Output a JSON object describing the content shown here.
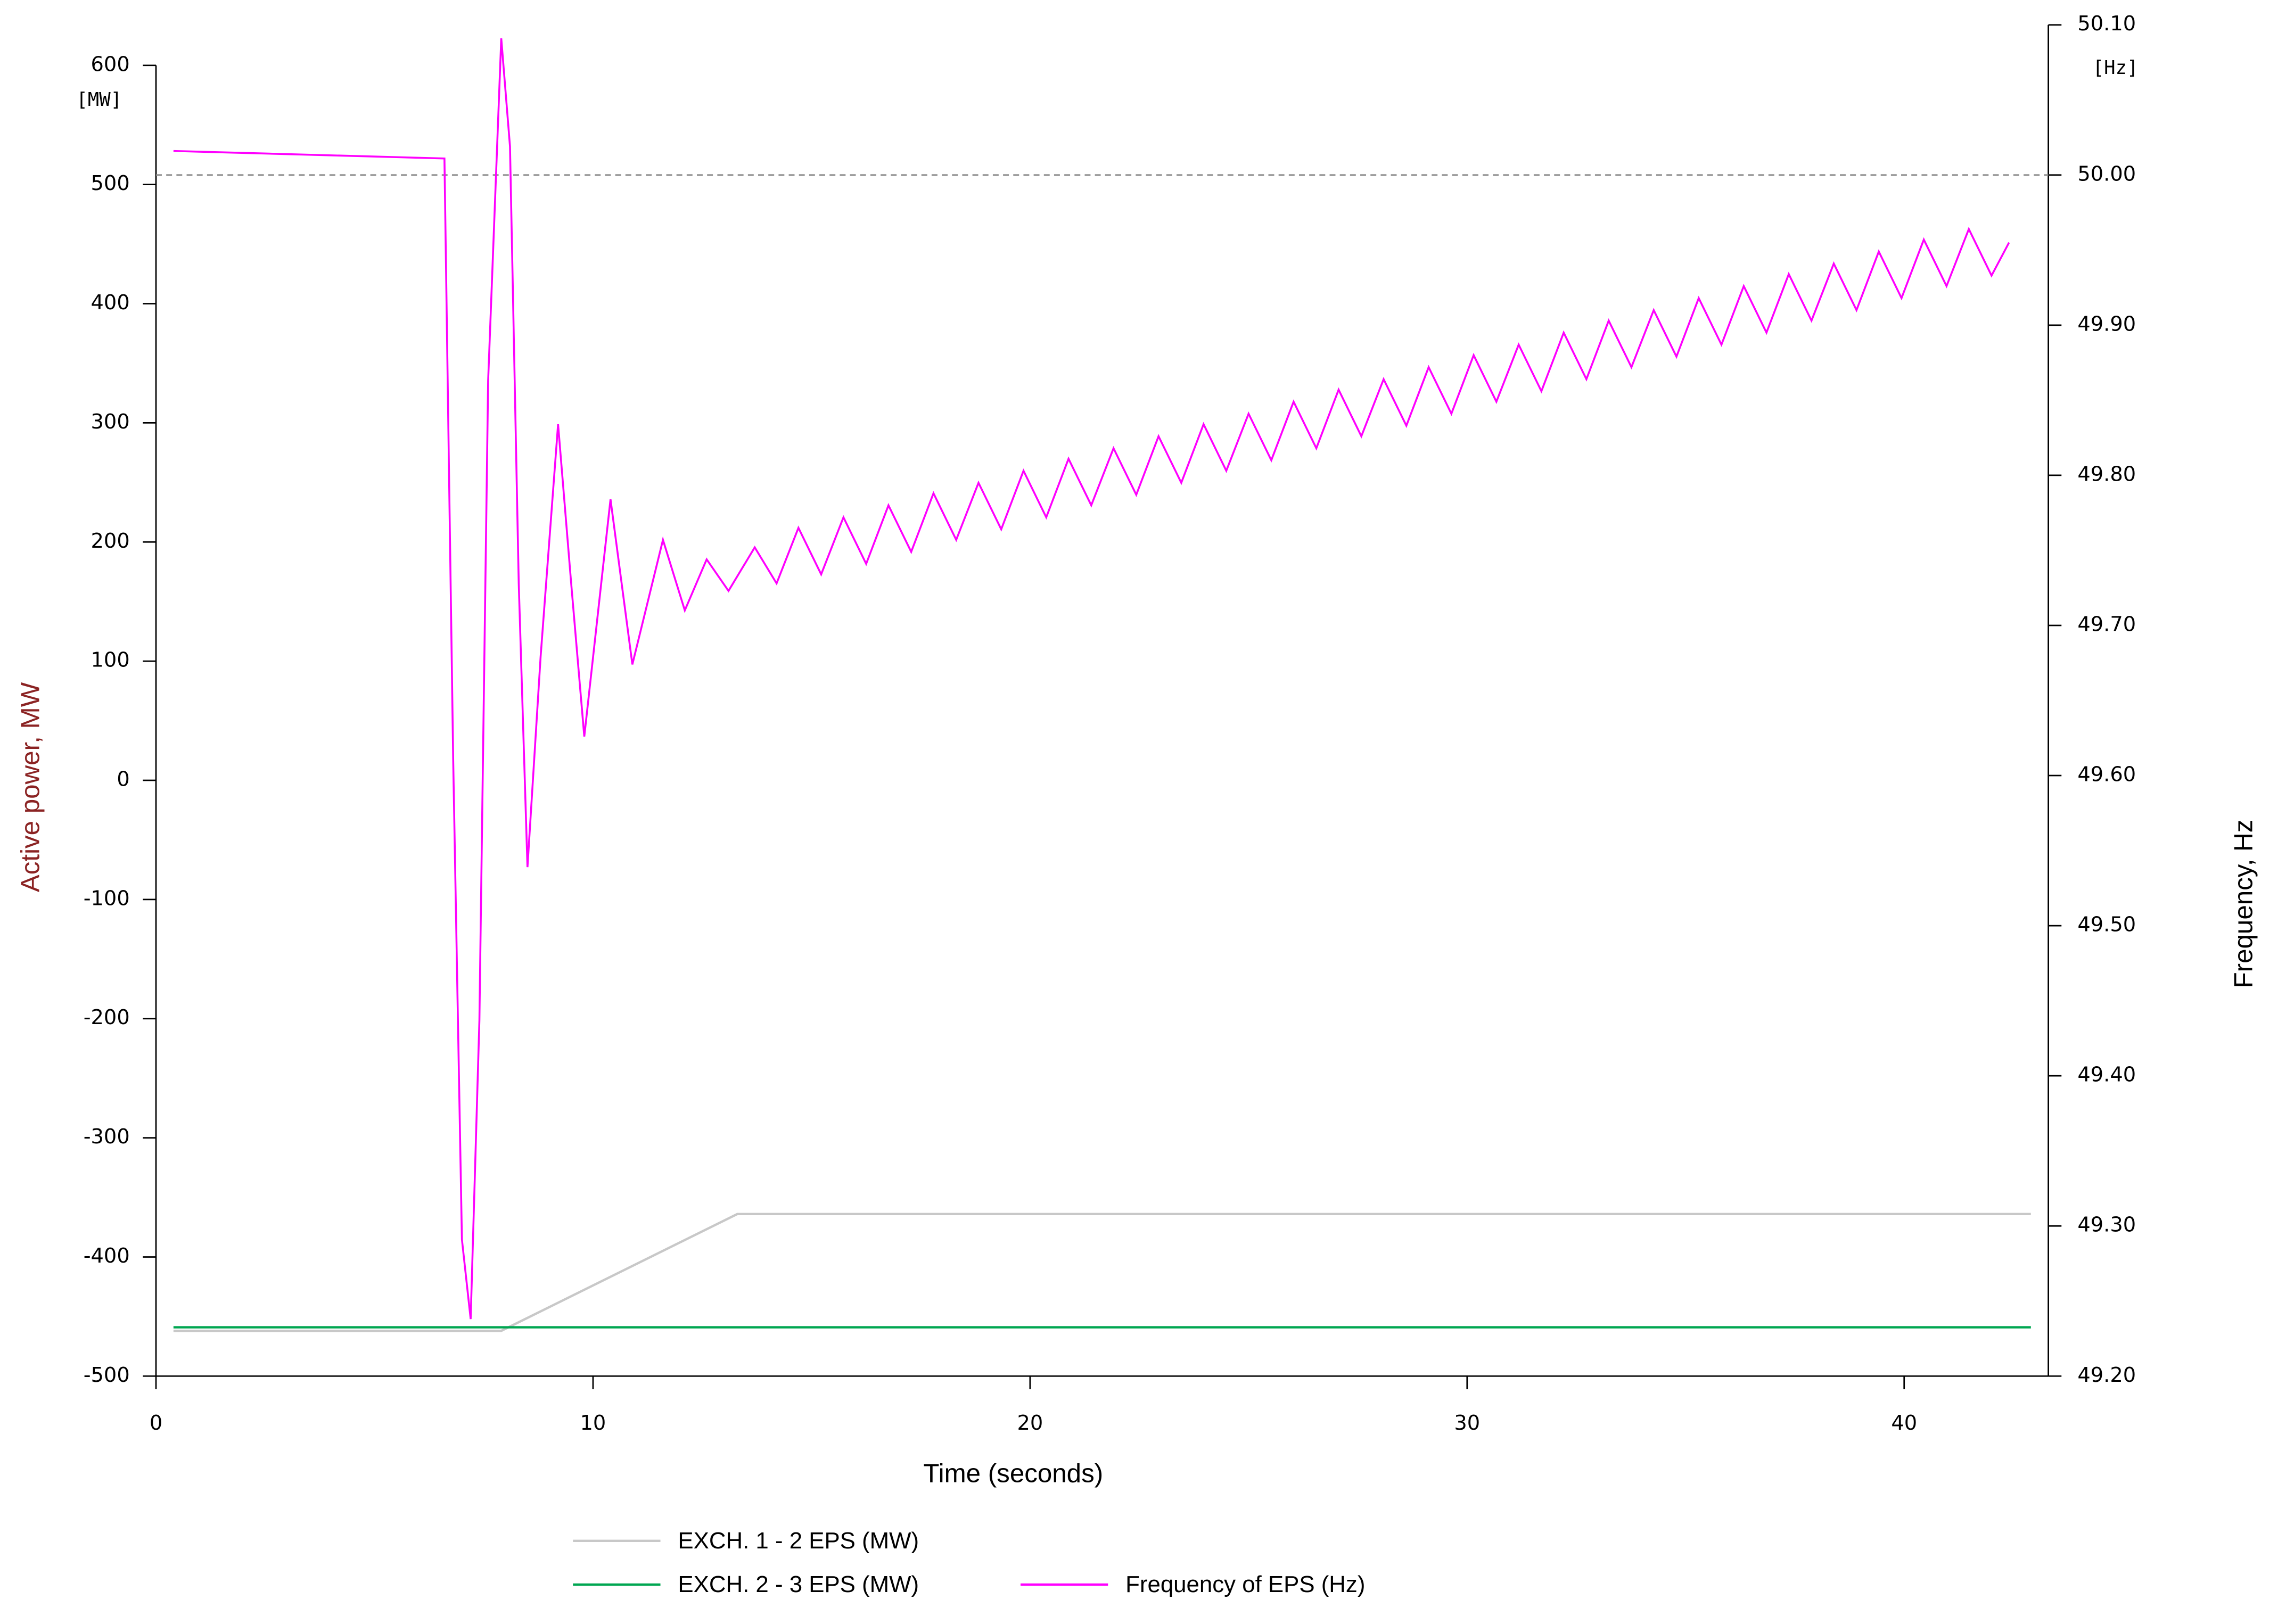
{
  "chart_data": {
    "type": "line",
    "x_label": "Time (seconds)",
    "y_label": "Active power, MW",
    "y2_label": "Frequency, Hz",
    "y_unit": "[MW]",
    "y2_unit": "[Hz]",
    "xlim": [
      0,
      43.3
    ],
    "xticks": [
      0,
      10,
      20,
      30,
      40
    ],
    "ylim": [
      -500,
      634
    ],
    "yticks": [
      -500,
      -400,
      -300,
      -200,
      -100,
      0,
      100,
      200,
      300,
      400,
      500,
      600
    ],
    "y2lim": [
      49.2,
      50.1
    ],
    "y2ticks": [
      {
        "value": 49.2,
        "label": "49.20"
      },
      {
        "value": 49.3,
        "label": "49.30"
      },
      {
        "value": 49.4,
        "label": "49.40"
      },
      {
        "value": 49.5,
        "label": "49.50"
      },
      {
        "value": 49.6,
        "label": "49.60"
      },
      {
        "value": 49.7,
        "label": "49.70"
      },
      {
        "value": 49.8,
        "label": "49.80"
      },
      {
        "value": 49.9,
        "label": "49.90"
      },
      {
        "value": 50.0,
        "label": "50.00"
      },
      {
        "value": 50.1,
        "label": "50.10"
      }
    ],
    "y2_refline": 50.0,
    "legend": "bottom",
    "series": [
      {
        "name": "EXCH. 1 - 2 EPS (MW)",
        "color": "#c8c8c8",
        "axis": "y",
        "x": [
          0.4,
          7.9,
          13.3,
          42.9
        ],
        "values": [
          -462,
          -462,
          -364,
          -364
        ]
      },
      {
        "name": "EXCH. 2 - 3 EPS (MW)",
        "color": "#00a651",
        "axis": "y",
        "x": [
          0.4,
          42.9
        ],
        "values": [
          -459,
          -459
        ]
      },
      {
        "name": "Frequency of EPS (Hz)",
        "color": "#ff00ff",
        "axis": "y2",
        "x": [
          0.4,
          6.6,
          6.8,
          7.0,
          7.2,
          7.4,
          7.6,
          7.9,
          8.1,
          8.3,
          8.5,
          8.8,
          9.2,
          9.5,
          9.8,
          10.4,
          10.9,
          11.6,
          12.1,
          12.6,
          13.1,
          13.7,
          14.2,
          14.7,
          15.22,
          15.73,
          16.25,
          16.76,
          17.28,
          17.79,
          18.31,
          18.82,
          19.34,
          19.85,
          20.37,
          20.88,
          21.4,
          21.91,
          22.43,
          22.94,
          23.46,
          23.97,
          24.49,
          25.0,
          25.52,
          26.03,
          26.55,
          27.06,
          27.58,
          28.09,
          28.61,
          29.12,
          29.64,
          30.15,
          30.67,
          31.18,
          31.7,
          32.21,
          32.73,
          33.24,
          33.76,
          34.27,
          34.79,
          35.3,
          35.82,
          36.33,
          36.85,
          37.36,
          37.88,
          38.39,
          38.91,
          39.42,
          39.94,
          40.45,
          40.97,
          41.48,
          42.0,
          42.4
        ],
        "values": [
          50.016,
          50.011,
          49.611,
          49.291,
          49.238,
          49.437,
          49.863,
          50.091,
          50.019,
          49.728,
          49.539,
          49.679,
          49.834,
          49.728,
          49.626,
          49.784,
          49.674,
          49.757,
          49.71,
          49.744,
          49.723,
          49.752,
          49.728,
          49.765,
          49.734,
          49.772,
          49.741,
          49.78,
          49.749,
          49.788,
          49.757,
          49.795,
          49.764,
          49.803,
          49.772,
          49.811,
          49.78,
          49.818,
          49.787,
          49.826,
          49.795,
          49.834,
          49.803,
          49.841,
          49.81,
          49.849,
          49.818,
          49.857,
          49.826,
          49.864,
          49.833,
          49.872,
          49.841,
          49.88,
          49.849,
          49.887,
          49.856,
          49.895,
          49.864,
          49.903,
          49.872,
          49.91,
          49.879,
          49.918,
          49.887,
          49.926,
          49.895,
          49.934,
          49.903,
          49.941,
          49.91,
          49.949,
          49.918,
          49.957,
          49.926,
          49.964,
          49.933,
          49.955
        ]
      }
    ]
  }
}
